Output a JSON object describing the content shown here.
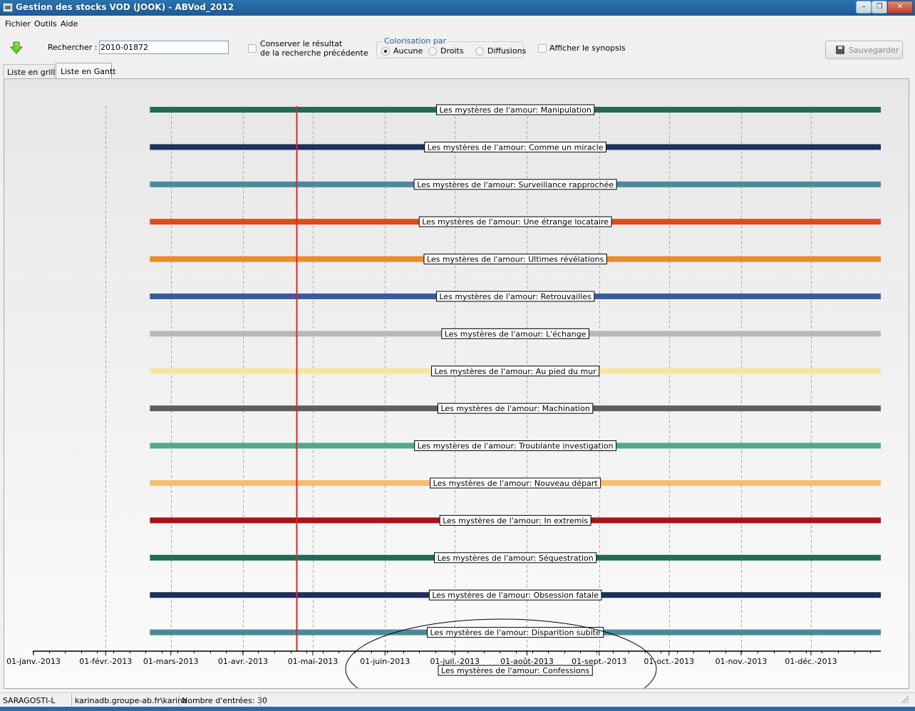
{
  "window": {
    "title": "Gestion des stocks VOD (JOOK) - ABVod_2012",
    "controls": {
      "minimize": "–",
      "maximize": "❐",
      "close": "✕"
    }
  },
  "menu": [
    "Fichier",
    "Outils",
    "Aide"
  ],
  "toolbar": {
    "refresh_icon": "green-down-arrow-icon",
    "search_label": "Rechercher :",
    "search_value": "2010-01872",
    "keep_result_checked": false,
    "keep_result_line1": "Conserver le résultat",
    "keep_result_line2": "de la recherche précédente",
    "color_group_label": "Colorisation par",
    "color_options": [
      {
        "label": "Aucune",
        "selected": true
      },
      {
        "label": "Droits",
        "selected": false
      },
      {
        "label": "Diffusions",
        "selected": false
      }
    ],
    "synopsis_checked": false,
    "synopsis_label": "Afficher le synopsis",
    "save_label": "Sauvegarder",
    "save_enabled": false
  },
  "tabs": [
    {
      "label": "Liste en grille",
      "active": false
    },
    {
      "label": "Liste en Gantt",
      "active": true
    }
  ],
  "chart_data": {
    "type": "gantt",
    "x_axis": {
      "start": "2013-01-01",
      "end": "2013-12-31",
      "tick_labels": [
        "01-janv.-2013",
        "01-févr.-2013",
        "01-mars-2013",
        "01-avr.-2013",
        "01-mai-2013",
        "01-juin-2013",
        "01-juil.-2013",
        "01-août-2013",
        "01-sept.-2013",
        "01-oct.-2013",
        "01-nov.-2013",
        "01-déc.-2013"
      ],
      "grid": true
    },
    "current_date": "2013-04-24",
    "current_date_color": "#e8231f",
    "bars": [
      {
        "label": "Les mystères de l'amour: Manipulation",
        "start": "2013-02-20",
        "end": "2013-12-31",
        "color": "#1f6b5a"
      },
      {
        "label": "Les mystères de l'amour: Comme un miracle",
        "start": "2013-02-20",
        "end": "2013-12-31",
        "color": "#1f2f5e"
      },
      {
        "label": "Les mystères de l'amour: Surveillance rapprochée",
        "start": "2013-02-20",
        "end": "2013-12-31",
        "color": "#4a8a9a"
      },
      {
        "label": "Les mystères de l'amour: Une étrange locataire",
        "start": "2013-02-20",
        "end": "2013-12-31",
        "color": "#e04a1c"
      },
      {
        "label": "Les mystères de l'amour: Ultimes révélations",
        "start": "2013-02-20",
        "end": "2013-12-31",
        "color": "#f0892a"
      },
      {
        "label": "Les mystères de l'amour: Retrouvailles",
        "start": "2013-02-20",
        "end": "2013-12-31",
        "color": "#3a5a9c"
      },
      {
        "label": "Les mystères de l'amour: L'échange",
        "start": "2013-02-20",
        "end": "2013-12-31",
        "color": "#b8b8b8"
      },
      {
        "label": "Les mystères de l'amour: Au pied du mur",
        "start": "2013-02-20",
        "end": "2013-12-31",
        "color": "#f6e6a0"
      },
      {
        "label": "Les mystères de l'amour: Machination",
        "start": "2013-02-20",
        "end": "2013-12-31",
        "color": "#5e5e5e"
      },
      {
        "label": "Les mystères de l'amour: Troublante investigation",
        "start": "2013-02-20",
        "end": "2013-12-31",
        "color": "#4faa8c"
      },
      {
        "label": "Les mystères de l'amour: Nouveau départ",
        "start": "2013-02-20",
        "end": "2013-12-31",
        "color": "#f8be6a"
      },
      {
        "label": "Les mystères de l'amour: In extremis",
        "start": "2013-02-20",
        "end": "2013-12-31",
        "color": "#a8141a"
      },
      {
        "label": "Les mystères de l'amour: Séquestration",
        "start": "2013-02-20",
        "end": "2013-12-31",
        "color": "#1f6b5a"
      },
      {
        "label": "Les mystères de l'amour: Obsession fatale",
        "start": "2013-02-20",
        "end": "2013-12-31",
        "color": "#1f2f5e"
      },
      {
        "label": "Les mystères de l'amour: Disparition subite",
        "start": "2013-02-20",
        "end": "2013-12-31",
        "color": "#4a8a9a"
      },
      {
        "label": "Les mystères de l'amour: Confessions",
        "start": "2013-02-20",
        "end": "2013-12-31",
        "color": "#e04a1c"
      }
    ],
    "annotation": "ellipse around last rows"
  },
  "status": {
    "user": "SARAGOSTI-L",
    "database": "karinadb.groupe-ab.fr\\karina",
    "entries": "Nombre d'entrées: 30"
  }
}
